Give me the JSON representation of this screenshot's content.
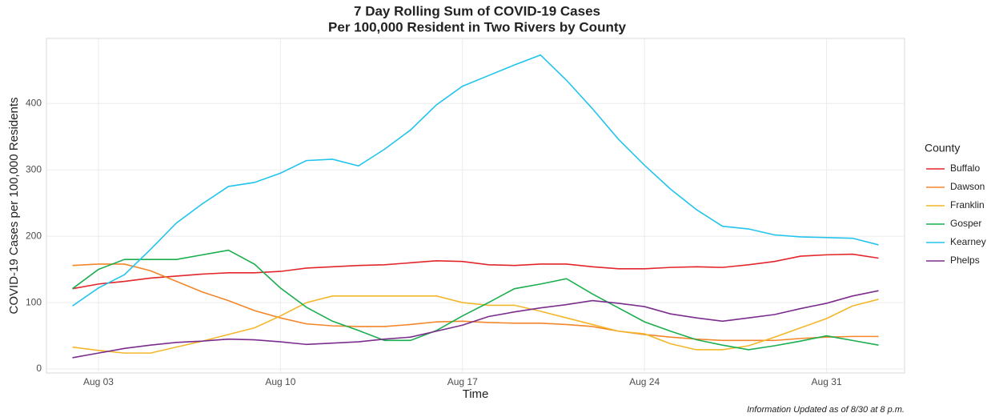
{
  "chart_data": {
    "type": "line",
    "title": [
      "7 Day Rolling Sum of COVID-19 Cases",
      "Per 100,000 Resident in Two Rivers by County"
    ],
    "xlabel": "Time",
    "ylabel": "COVID-19 Cases per 100,000 Residents",
    "legend_title": "County",
    "legend": "right",
    "grid": true,
    "footnote": "Information Updated as of 8/30 at 8 p.m.",
    "x": [
      "08-02",
      "08-03",
      "08-04",
      "08-05",
      "08-06",
      "08-07",
      "08-08",
      "08-09",
      "08-10",
      "08-11",
      "08-12",
      "08-13",
      "08-14",
      "08-15",
      "08-16",
      "08-17",
      "08-18",
      "08-19",
      "08-20",
      "08-21",
      "08-22",
      "08-23",
      "08-24",
      "08-25",
      "08-26",
      "08-27",
      "08-28",
      "08-29",
      "08-30",
      "08-31",
      "09-01",
      "09-02"
    ],
    "xlim": [
      "08-01",
      "09-03"
    ],
    "xticks": [
      {
        "value": "08-03",
        "label": "Aug 03"
      },
      {
        "value": "08-10",
        "label": "Aug 10"
      },
      {
        "value": "08-17",
        "label": "Aug 17"
      },
      {
        "value": "08-24",
        "label": "Aug 24"
      },
      {
        "value": "08-31",
        "label": "Aug 31"
      }
    ],
    "ylim": [
      -6,
      498
    ],
    "yticks": [
      0,
      100,
      200,
      300,
      400
    ],
    "series": [
      {
        "name": "Buffalo",
        "color": "#e3262c",
        "values": [
          121,
          128,
          132,
          137,
          140,
          143,
          145,
          145,
          147,
          152,
          154,
          156,
          157,
          160,
          163,
          162,
          157,
          156,
          158,
          158,
          154,
          151,
          151,
          153,
          154,
          153,
          157,
          162,
          170,
          172,
          173,
          167
        ]
      },
      {
        "name": "Dawson",
        "color": "#f4862a",
        "values": [
          156,
          158,
          158,
          148,
          132,
          116,
          103,
          88,
          77,
          68,
          65,
          64,
          64,
          67,
          71,
          72,
          70,
          69,
          69,
          67,
          64,
          57,
          52,
          48,
          45,
          43,
          43,
          43,
          46,
          48,
          49,
          49
        ]
      },
      {
        "name": "Franklin",
        "color": "#f3b72a",
        "values": [
          33,
          28,
          24,
          24,
          33,
          42,
          52,
          62,
          80,
          100,
          110,
          110,
          110,
          110,
          110,
          100,
          96,
          96,
          87,
          77,
          67,
          57,
          53,
          38,
          29,
          29,
          35,
          48,
          62,
          76,
          95,
          105
        ]
      },
      {
        "name": "Gosper",
        "color": "#1aae4f",
        "values": [
          121,
          150,
          165,
          165,
          165,
          172,
          179,
          158,
          122,
          93,
          72,
          58,
          43,
          43,
          58,
          80,
          100,
          121,
          128,
          136,
          113,
          92,
          71,
          57,
          44,
          36,
          29,
          35,
          42,
          50,
          43,
          36
        ]
      },
      {
        "name": "Kearney",
        "color": "#22c4ee",
        "values": [
          95,
          122,
          142,
          180,
          220,
          249,
          275,
          281,
          295,
          314,
          316,
          306,
          331,
          360,
          398,
          426,
          442,
          458,
          473,
          435,
          392,
          346,
          307,
          271,
          240,
          215,
          211,
          202,
          199,
          198,
          197,
          187
        ]
      },
      {
        "name": "Phelps",
        "color": "#7b2d8e",
        "values": [
          17,
          24,
          31,
          36,
          40,
          42,
          45,
          44,
          41,
          37,
          39,
          41,
          45,
          48,
          57,
          66,
          79,
          86,
          92,
          97,
          103,
          99,
          94,
          83,
          77,
          72,
          77,
          82,
          91,
          99,
          110,
          118
        ]
      }
    ]
  }
}
